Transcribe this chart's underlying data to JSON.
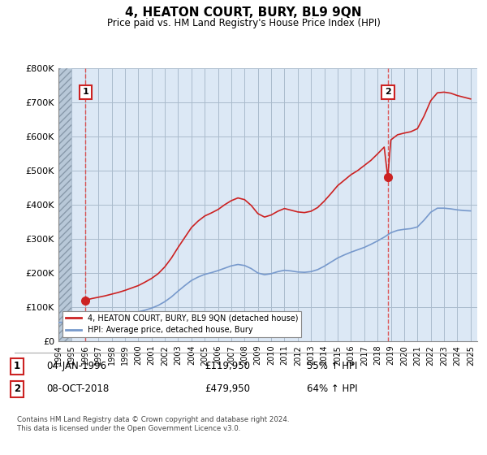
{
  "title": "4, HEATON COURT, BURY, BL9 9QN",
  "subtitle": "Price paid vs. HM Land Registry's House Price Index (HPI)",
  "ylabel_ticks": [
    "£0",
    "£100K",
    "£200K",
    "£300K",
    "£400K",
    "£500K",
    "£600K",
    "£700K",
    "£800K"
  ],
  "ytick_values": [
    0,
    100000,
    200000,
    300000,
    400000,
    500000,
    600000,
    700000,
    800000
  ],
  "ylim": [
    0,
    800000
  ],
  "xlim_start": 1994.0,
  "xlim_end": 2025.5,
  "sale_dates": [
    1996.04,
    2018.77
  ],
  "sale_prices": [
    119950,
    479950
  ],
  "sale_labels": [
    "1",
    "2"
  ],
  "hpi_line_color": "#7799cc",
  "price_line_color": "#cc2222",
  "annotation_box_color": "#cc2222",
  "dashed_line_color": "#dd4444",
  "legend_label_price": "4, HEATON COURT, BURY, BL9 9QN (detached house)",
  "legend_label_hpi": "HPI: Average price, detached house, Bury",
  "annotation_1_date": "04-JAN-1996",
  "annotation_1_price": "£119,950",
  "annotation_1_hpi": "55% ↑ HPI",
  "annotation_2_date": "08-OCT-2018",
  "annotation_2_price": "£479,950",
  "annotation_2_hpi": "64% ↑ HPI",
  "footnote": "Contains HM Land Registry data © Crown copyright and database right 2024.\nThis data is licensed under the Open Government Licence v3.0.",
  "plot_bg_color": "#dce8f5",
  "hatch_color": "#b8c8d8",
  "grid_color": "#aabbcc",
  "hpi_x": [
    1994.0,
    1994.5,
    1995.0,
    1995.5,
    1996.0,
    1996.5,
    1997.0,
    1997.5,
    1998.0,
    1998.5,
    1999.0,
    1999.5,
    2000.0,
    2000.5,
    2001.0,
    2001.5,
    2002.0,
    2002.5,
    2003.0,
    2003.5,
    2004.0,
    2004.5,
    2005.0,
    2005.5,
    2006.0,
    2006.5,
    2007.0,
    2007.5,
    2008.0,
    2008.5,
    2009.0,
    2009.5,
    2010.0,
    2010.5,
    2011.0,
    2011.5,
    2012.0,
    2012.5,
    2013.0,
    2013.5,
    2014.0,
    2014.5,
    2015.0,
    2015.5,
    2016.0,
    2016.5,
    2017.0,
    2017.5,
    2018.0,
    2018.5,
    2019.0,
    2019.5,
    2020.0,
    2020.5,
    2021.0,
    2021.5,
    2022.0,
    2022.5,
    2023.0,
    2023.5,
    2024.0,
    2024.5,
    2025.0
  ],
  "hpi_y": [
    55000,
    56000,
    58000,
    60000,
    62000,
    64000,
    66000,
    69000,
    72000,
    75000,
    78000,
    82000,
    86000,
    91000,
    97000,
    105000,
    116000,
    130000,
    147000,
    163000,
    178000,
    188000,
    196000,
    201000,
    207000,
    214000,
    221000,
    225000,
    222000,
    213000,
    200000,
    195000,
    198000,
    204000,
    208000,
    206000,
    203000,
    202000,
    204000,
    210000,
    220000,
    232000,
    244000,
    253000,
    261000,
    268000,
    275000,
    284000,
    294000,
    305000,
    318000,
    325000,
    328000,
    330000,
    335000,
    355000,
    378000,
    390000,
    390000,
    388000,
    385000,
    383000,
    382000
  ],
  "price_x": [
    1996.04,
    1996.2,
    1996.5,
    1997.0,
    1997.5,
    1998.0,
    1998.5,
    1999.0,
    1999.5,
    2000.0,
    2000.5,
    2001.0,
    2001.5,
    2002.0,
    2002.5,
    2003.0,
    2003.5,
    2004.0,
    2004.5,
    2005.0,
    2005.5,
    2006.0,
    2006.5,
    2007.0,
    2007.5,
    2008.0,
    2008.5,
    2009.0,
    2009.5,
    2010.0,
    2010.5,
    2011.0,
    2011.5,
    2012.0,
    2012.5,
    2013.0,
    2013.5,
    2014.0,
    2014.5,
    2015.0,
    2015.5,
    2016.0,
    2016.5,
    2017.0,
    2017.5,
    2018.0,
    2018.5,
    2018.77,
    2019.0,
    2019.5,
    2020.0,
    2020.5,
    2021.0,
    2021.5,
    2022.0,
    2022.5,
    2023.0,
    2023.5,
    2024.0,
    2024.5,
    2025.0
  ],
  "price_y": [
    119950,
    122000,
    125000,
    129000,
    133000,
    138000,
    143000,
    149000,
    156000,
    163000,
    173000,
    184000,
    198000,
    218000,
    244000,
    275000,
    304000,
    333000,
    352000,
    367000,
    376000,
    386000,
    400000,
    412000,
    420000,
    415000,
    398000,
    374000,
    364000,
    370000,
    381000,
    389000,
    384000,
    379000,
    377000,
    381000,
    392000,
    411000,
    433000,
    456000,
    472000,
    488000,
    500000,
    515000,
    530000,
    549000,
    569000,
    479950,
    590000,
    605000,
    610000,
    614000,
    623000,
    660000,
    705000,
    728000,
    730000,
    727000,
    720000,
    715000,
    710000
  ]
}
